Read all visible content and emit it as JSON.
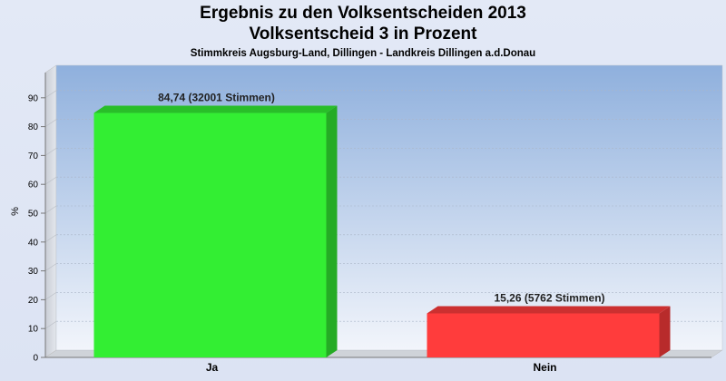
{
  "chart_data": {
    "type": "bar",
    "title": "Ergebnis zu den Volksentscheiden 2013",
    "subtitle": "Volksentscheid 3 in Prozent",
    "caption": "Stimmkreis Augsburg-Land, Dillingen - Landkreis Dillingen a.d.Donau",
    "xlabel": "",
    "ylabel": "%",
    "ylim": [
      0,
      95
    ],
    "yticks": [
      0,
      10,
      20,
      30,
      40,
      50,
      60,
      70,
      80,
      90
    ],
    "categories": [
      "Ja",
      "Nein"
    ],
    "values": [
      84.74,
      15.26
    ],
    "data_labels": [
      "84,74 (32001 Stimmen)",
      "15,26 (5762 Stimmen)"
    ],
    "colors": [
      "#33ee33",
      "#ff3c3c"
    ],
    "grid": true
  }
}
